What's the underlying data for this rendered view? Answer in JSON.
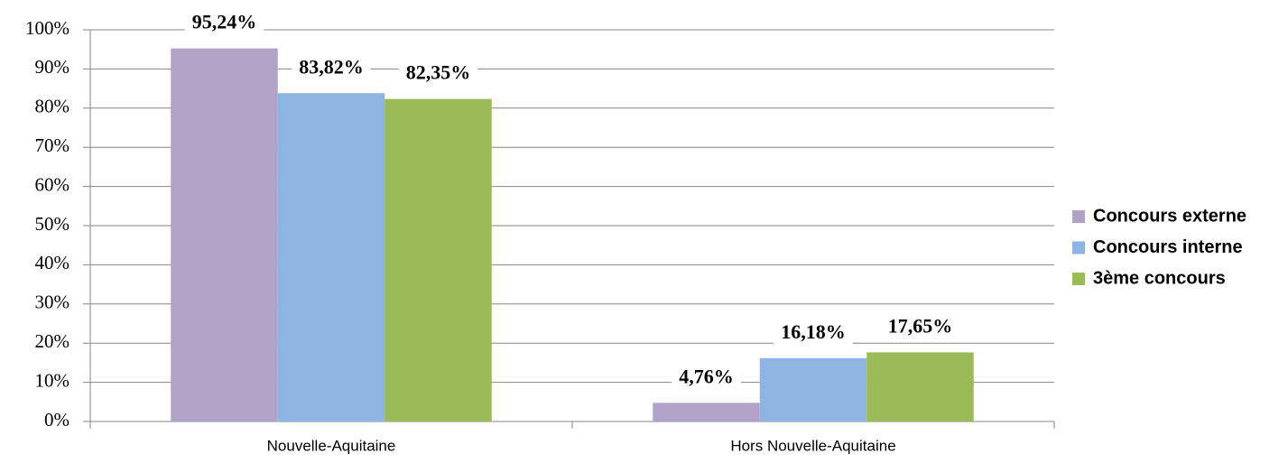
{
  "chart_data": {
    "type": "bar",
    "categories": [
      "Nouvelle-Aquitaine",
      "Hors Nouvelle-Aquitaine"
    ],
    "series": [
      {
        "name": "Concours externe",
        "color": "#b3a2c7",
        "values": [
          95.24,
          4.76
        ],
        "value_labels": [
          "95,24%",
          "4,76%"
        ]
      },
      {
        "name": "Concours interne",
        "color": "#8eb4e3",
        "values": [
          83.82,
          16.18
        ],
        "value_labels": [
          "83,82%",
          "16,18%"
        ]
      },
      {
        "name": "3ème concours",
        "color": "#9bbb59",
        "values": [
          82.35,
          17.65
        ],
        "value_labels": [
          "82,35%",
          "17,65%"
        ]
      }
    ],
    "ylim": [
      0,
      100
    ],
    "yticks": [
      {
        "value": 0,
        "label": "0%"
      },
      {
        "value": 10,
        "label": "10%"
      },
      {
        "value": 20,
        "label": "20%"
      },
      {
        "value": 30,
        "label": "30%"
      },
      {
        "value": 40,
        "label": "40%"
      },
      {
        "value": 50,
        "label": "50%"
      },
      {
        "value": 60,
        "label": "60%"
      },
      {
        "value": 70,
        "label": "70%"
      },
      {
        "value": 80,
        "label": "80%"
      },
      {
        "value": 90,
        "label": "90%"
      },
      {
        "value": 100,
        "label": "100%"
      }
    ],
    "grid": true,
    "legend": "right"
  }
}
